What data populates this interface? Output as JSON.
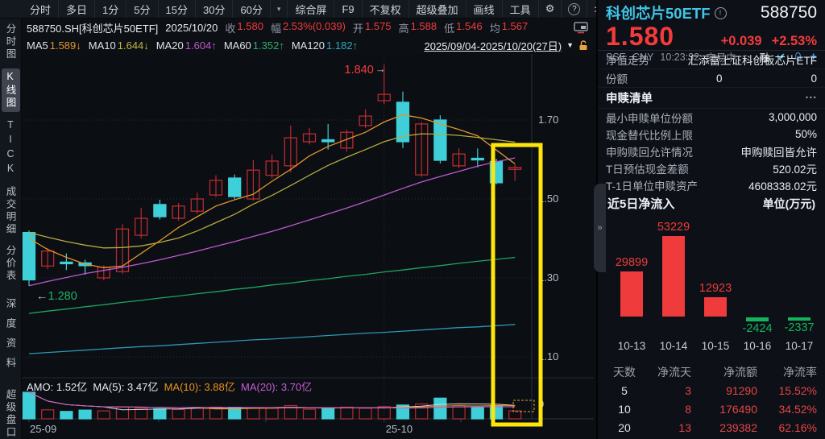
{
  "toolbar": {
    "periods": [
      "分时",
      "多日",
      "1分",
      "5分",
      "15分",
      "30分",
      "60分"
    ],
    "caret": "▾",
    "menus": [
      "综合屏",
      "F9",
      "不复权",
      "超级叠加",
      "画线",
      "工具"
    ],
    "gear": "⚙",
    "help": "?",
    "more": ">"
  },
  "quote_bar": {
    "symbol": "588750.SH[科创芯片50ETF]",
    "date": "2025/10/20",
    "close_label": "收",
    "close": "1.580",
    "amp_label": "幅",
    "amp": "2.53%(0.039)",
    "open_label": "开",
    "open": "1.575",
    "high_label": "高",
    "high": "1.588",
    "low_label": "低",
    "low": "1.546",
    "avg_label": "均",
    "avg": "1.567"
  },
  "ma_bar": {
    "ma5_label": "MA5",
    "ma5": "1.589↓",
    "ma10_label": "MA10",
    "ma10": "1.644↓",
    "ma20_label": "MA20",
    "ma20": "1.604↑",
    "ma60_label": "MA60",
    "ma60": "1.352↑",
    "ma120_label": "MA120",
    "ma120": "1.182↑",
    "date_range": "2025/09/04-2025/10/20(27日)",
    "range_caret": "▼"
  },
  "sidebar": {
    "items": [
      {
        "label": "分时图",
        "selected": false
      },
      {
        "label": "K线图",
        "selected": true
      },
      {
        "label": "TICK",
        "selected": false
      },
      {
        "label": "成交明细",
        "selected": false
      },
      {
        "label": "分价表",
        "selected": false
      },
      {
        "label": "深度资料",
        "selected": false
      },
      {
        "label": "超级盘口",
        "selected": false
      }
    ]
  },
  "panel_handle": "»",
  "right_panel": {
    "name": "科创芯片50ETF",
    "info_icon": "!",
    "code": "588750",
    "price": "1.580",
    "change": "+0.039",
    "change_pct": "+2.53%",
    "exchange": "SSE",
    "currency": "CNY",
    "time": "10:23:32",
    "status": "交易中",
    "margin_flag": "融",
    "nav_row": {
      "label": "净值走势",
      "value": "汇添富上证科创板芯片ETF"
    },
    "share_row": {
      "label": "份额",
      "v1": "0",
      "v2": "0"
    },
    "list_header": {
      "label": "申赎清单",
      "more": "···"
    },
    "list": [
      {
        "label": "最小申赎单位份额",
        "value": "3,000,000"
      },
      {
        "label": "现金替代比例上限",
        "value": "50%"
      },
      {
        "label": "申购赎回允许情况",
        "value": "申购赎回皆允许"
      },
      {
        "label": "T日预估现金差额",
        "value": "520.02元"
      },
      {
        "label": "T-1日单位申赎资产",
        "value": "4608338.02元"
      }
    ],
    "flow_table": {
      "headers": [
        "天数",
        "净流天",
        "净流额",
        "净流率"
      ],
      "rows": [
        [
          "5",
          "3",
          "91290",
          "15.52%"
        ],
        [
          "10",
          "8",
          "176490",
          "34.52%"
        ],
        [
          "20",
          "13",
          "239382",
          "62.16%"
        ]
      ]
    }
  },
  "chart_data": [
    {
      "type": "candlestick",
      "title": "588750.SH 科创芯片50ETF 日K",
      "period": "2025/09/04-2025/10/20(27日)",
      "ylim": [
        1.05,
        1.88
      ],
      "yticks": [
        1.7,
        1.5,
        1.3,
        1.1
      ],
      "x_axis_labels": [
        "25-09",
        "25-10"
      ],
      "volume_ytick": "0",
      "colors": {
        "up": "#b92b2f",
        "down": "#3ecfd8",
        "ma5": "#e2952f",
        "ma10": "#b7ab3e",
        "ma20": "#c058ce",
        "ma60": "#22a45f",
        "ma120": "#2e97b5",
        "highlight": "#ffe60a"
      },
      "annotations": {
        "high_label": "1.840",
        "high_arrow": "→",
        "low_label": "1.280",
        "low_arrow": "←",
        "highlight_dates": [
          "10-17",
          "10-20"
        ]
      },
      "amo_line": {
        "amo_label": "AMO:",
        "amo": "1.52亿",
        "ma5_label": "MA(5):",
        "ma5": "3.47亿",
        "ma10_label": "MA(10):",
        "ma10": "3.88亿",
        "ma20_label": "MA(20):",
        "ma20": "3.70亿"
      },
      "candles": [
        {
          "date": "09-04",
          "o": 1.415,
          "h": 1.42,
          "l": 1.28,
          "c": 1.295,
          "vol": 1.0
        },
        {
          "date": "09-05",
          "o": 1.33,
          "h": 1.375,
          "l": 1.322,
          "c": 1.368,
          "vol": 0.34
        },
        {
          "date": "09-08",
          "o": 1.34,
          "h": 1.362,
          "l": 1.32,
          "c": 1.336,
          "vol": 0.28
        },
        {
          "date": "09-09",
          "o": 1.338,
          "h": 1.346,
          "l": 1.308,
          "c": 1.331,
          "vol": 0.33
        },
        {
          "date": "09-10",
          "o": 1.3,
          "h": 1.332,
          "l": 1.294,
          "c": 1.327,
          "vol": 0.3
        },
        {
          "date": "09-11",
          "o": 1.316,
          "h": 1.436,
          "l": 1.31,
          "c": 1.424,
          "vol": 0.45
        },
        {
          "date": "09-12",
          "o": 1.408,
          "h": 1.478,
          "l": 1.4,
          "c": 1.451,
          "vol": 0.4
        },
        {
          "date": "09-15",
          "o": 1.486,
          "h": 1.498,
          "l": 1.448,
          "c": 1.455,
          "vol": 0.38
        },
        {
          "date": "09-16",
          "o": 1.451,
          "h": 1.49,
          "l": 1.445,
          "c": 1.482,
          "vol": 0.35
        },
        {
          "date": "09-17",
          "o": 1.469,
          "h": 1.516,
          "l": 1.462,
          "c": 1.5,
          "vol": 0.43
        },
        {
          "date": "09-18",
          "o": 1.51,
          "h": 1.56,
          "l": 1.505,
          "c": 1.547,
          "vol": 0.44
        },
        {
          "date": "09-19",
          "o": 1.553,
          "h": 1.562,
          "l": 1.5,
          "c": 1.506,
          "vol": 0.43
        },
        {
          "date": "09-22",
          "o": 1.5,
          "h": 1.598,
          "l": 1.496,
          "c": 1.573,
          "vol": 0.42
        },
        {
          "date": "09-23",
          "o": 1.56,
          "h": 1.612,
          "l": 1.552,
          "c": 1.596,
          "vol": 0.4
        },
        {
          "date": "09-24",
          "o": 1.584,
          "h": 1.686,
          "l": 1.567,
          "c": 1.655,
          "vol": 0.5
        },
        {
          "date": "09-25",
          "o": 1.645,
          "h": 1.68,
          "l": 1.638,
          "c": 1.665,
          "vol": 0.36
        },
        {
          "date": "09-26",
          "o": 1.65,
          "h": 1.69,
          "l": 1.625,
          "c": 1.645,
          "vol": 0.4
        },
        {
          "date": "09-29",
          "o": 1.629,
          "h": 1.675,
          "l": 1.62,
          "c": 1.669,
          "vol": 0.44
        },
        {
          "date": "09-30",
          "o": 1.686,
          "h": 1.727,
          "l": 1.68,
          "c": 1.71,
          "vol": 0.4
        },
        {
          "date": "10-09",
          "o": 1.749,
          "h": 1.84,
          "l": 1.74,
          "c": 1.765,
          "vol": 0.46
        },
        {
          "date": "10-10",
          "o": 1.745,
          "h": 1.772,
          "l": 1.629,
          "c": 1.645,
          "vol": 0.52
        },
        {
          "date": "10-13",
          "o": 1.561,
          "h": 1.695,
          "l": 1.556,
          "c": 1.69,
          "vol": 0.56
        },
        {
          "date": "10-14",
          "o": 1.7,
          "h": 1.712,
          "l": 1.59,
          "c": 1.598,
          "vol": 0.78
        },
        {
          "date": "10-15",
          "o": 1.584,
          "h": 1.628,
          "l": 1.578,
          "c": 1.614,
          "vol": 0.5
        },
        {
          "date": "10-16",
          "o": 1.603,
          "h": 1.628,
          "l": 1.58,
          "c": 1.6,
          "vol": 0.44
        },
        {
          "date": "10-17",
          "o": 1.595,
          "h": 1.602,
          "l": 1.537,
          "c": 1.541,
          "vol": 0.5
        },
        {
          "date": "10-20",
          "o": 1.575,
          "h": 1.588,
          "l": 1.546,
          "c": 1.58,
          "vol": 0.3
        }
      ],
      "ma_series": {
        "ma5": [
          1.4,
          1.372,
          1.352,
          1.335,
          1.326,
          1.33,
          1.362,
          1.394,
          1.428,
          1.455,
          1.482,
          1.498,
          1.512,
          1.545,
          1.575,
          1.609,
          1.633,
          1.651,
          1.669,
          1.695,
          1.713,
          1.705,
          1.69,
          1.676,
          1.66,
          1.624,
          1.589
        ],
        "ma10": [
          1.415,
          1.403,
          1.392,
          1.383,
          1.376,
          1.377,
          1.381,
          1.39,
          1.401,
          1.419,
          1.44,
          1.461,
          1.487,
          1.509,
          1.534,
          1.56,
          1.585,
          1.606,
          1.625,
          1.645,
          1.659,
          1.665,
          1.664,
          1.661,
          1.656,
          1.65,
          1.644
        ],
        "ma20": [
          1.28,
          1.291,
          1.301,
          1.311,
          1.319,
          1.327,
          1.336,
          1.346,
          1.357,
          1.368,
          1.38,
          1.392,
          1.405,
          1.418,
          1.432,
          1.447,
          1.462,
          1.477,
          1.493,
          1.51,
          1.527,
          1.543,
          1.557,
          1.57,
          1.583,
          1.594,
          1.604
        ],
        "ma60": [
          1.21,
          1.216,
          1.221,
          1.227,
          1.232,
          1.238,
          1.243,
          1.249,
          1.254,
          1.26,
          1.265,
          1.271,
          1.276,
          1.282,
          1.287,
          1.293,
          1.298,
          1.304,
          1.309,
          1.315,
          1.32,
          1.326,
          1.331,
          1.337,
          1.342,
          1.347,
          1.352
        ],
        "ma120": [
          1.108,
          1.111,
          1.114,
          1.117,
          1.12,
          1.123,
          1.126,
          1.128,
          1.131,
          1.134,
          1.137,
          1.14,
          1.143,
          1.145,
          1.148,
          1.151,
          1.154,
          1.157,
          1.16,
          1.162,
          1.165,
          1.168,
          1.171,
          1.174,
          1.176,
          1.179,
          1.182
        ]
      }
    },
    {
      "type": "bar",
      "title": "近5日净流入",
      "unit": "单位(万元)",
      "categories": [
        "10-13",
        "10-14",
        "10-15",
        "10-16",
        "10-17"
      ],
      "values": [
        29899,
        53229,
        12923,
        -2424,
        -2337
      ],
      "colors": {
        "positive": "#ef3b3b",
        "negative": "#13b45c"
      }
    }
  ]
}
